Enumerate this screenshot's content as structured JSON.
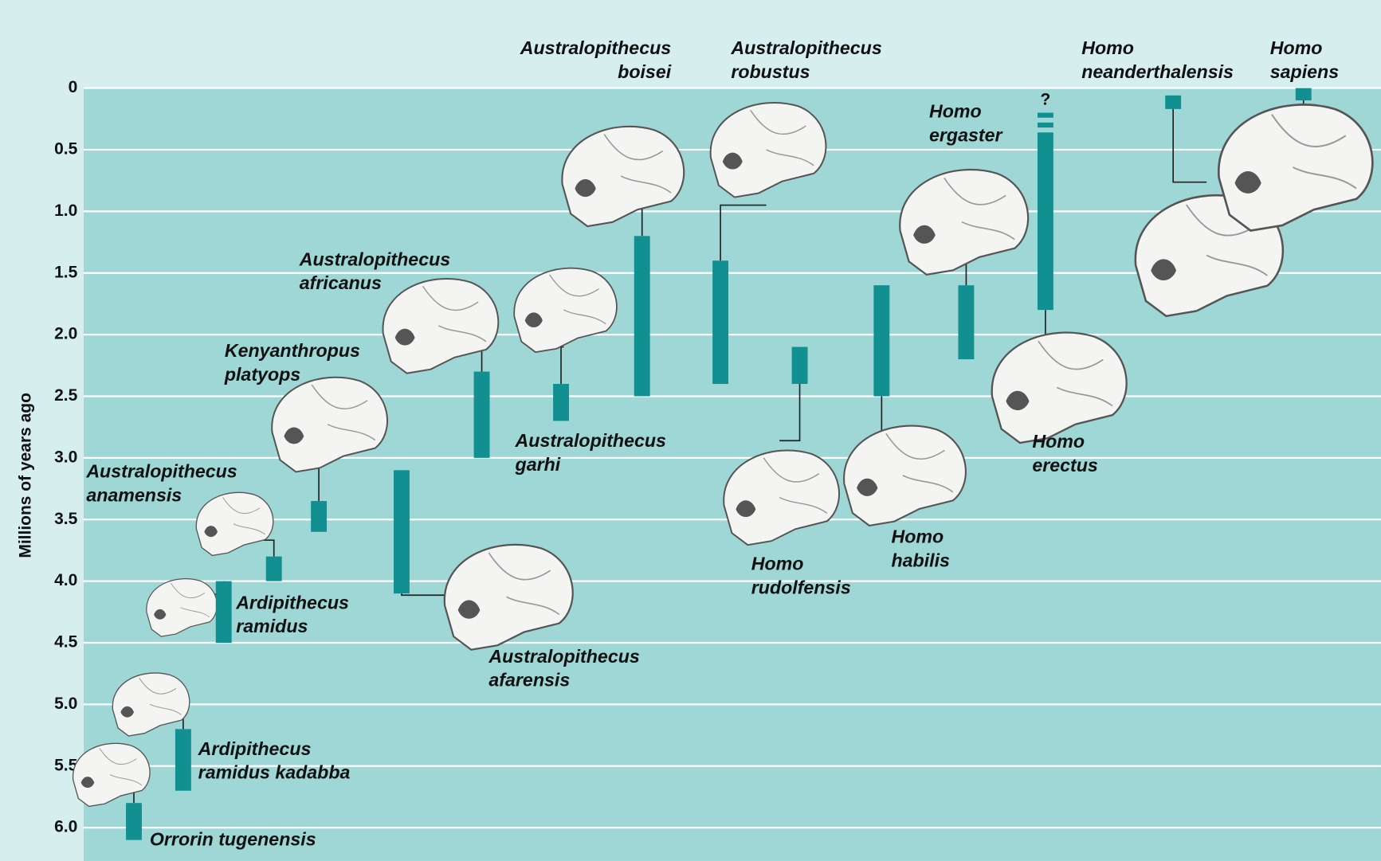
{
  "chart_data": {
    "type": "range",
    "y_label": "Millions of years ago",
    "ylim": [
      0,
      6.27
    ],
    "y_inverted": true,
    "yticks": [
      0,
      0.5,
      {
        "value": 1,
        "label": "1.0"
      },
      1.5,
      {
        "value": 2,
        "label": "2.0"
      },
      2.5,
      {
        "value": 3,
        "label": "3.0"
      },
      3.5,
      {
        "value": 4,
        "label": "4.0"
      },
      4.5,
      {
        "value": 5,
        "label": "5.0"
      },
      5.5,
      {
        "value": 6,
        "label": "6.0"
      }
    ],
    "grid": true,
    "color": "#128f90",
    "species": [
      {
        "name": [
          "Orrorin tugenensis"
        ],
        "start": 5.8,
        "end": 6.1
      },
      {
        "name": [
          "Ardipithecus",
          "ramidus kadabba"
        ],
        "start": 5.2,
        "end": 5.7
      },
      {
        "name": [
          "Ardipithecus",
          "ramidus"
        ],
        "start": 4.0,
        "end": 4.5
      },
      {
        "name": [
          "Australopithecus",
          "anamensis"
        ],
        "start": 3.8,
        "end": 4.0
      },
      {
        "name": [
          "Kenyanthropus",
          "platyops"
        ],
        "start": 3.35,
        "end": 3.6
      },
      {
        "name": [
          "Australopithecus",
          "afarensis"
        ],
        "start": 3.1,
        "end": 4.1
      },
      {
        "name": [
          "Australopithecus",
          "africanus"
        ],
        "start": 2.3,
        "end": 3.0
      },
      {
        "name": [
          "Australopithecus",
          "garhi"
        ],
        "start": 2.4,
        "end": 2.7
      },
      {
        "name": [
          "Australopithecus",
          "boisei"
        ],
        "start": 1.2,
        "end": 2.5
      },
      {
        "name": [
          "Australopithecus",
          "robustus"
        ],
        "start": 1.4,
        "end": 2.4
      },
      {
        "name": [
          "Homo",
          "rudolfensis"
        ],
        "start": 2.1,
        "end": 2.4
      },
      {
        "name": [
          "Homo",
          "habilis"
        ],
        "start": 1.6,
        "end": 2.5
      },
      {
        "name": [
          "Homo",
          "ergaster"
        ],
        "start": 1.6,
        "end": 2.2
      },
      {
        "name": [
          "Homo",
          "erectus"
        ],
        "start": 0.4,
        "end": 1.8,
        "uncertain_from": 0.2,
        "annotation": "?"
      },
      {
        "name": [
          "Homo",
          "neanderthalensis"
        ],
        "start": 0.06,
        "end": 0.17
      },
      {
        "name": [
          "Homo",
          "sapiens"
        ],
        "start": 0,
        "end": 0.1
      }
    ]
  }
}
